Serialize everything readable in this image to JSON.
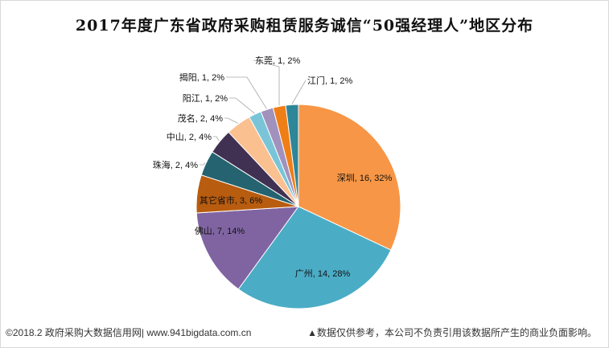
{
  "chart_data": {
    "type": "pie",
    "title": "2017年度广东省政府采购租赁服务诚信“50强经理人”地区分布",
    "slices": [
      {
        "name": "深圳",
        "value": 16,
        "percent": "32%",
        "color": "#f79646"
      },
      {
        "name": "广州",
        "value": 14,
        "percent": "28%",
        "color": "#4bacc6"
      },
      {
        "name": "佛山",
        "value": 7,
        "percent": "14%",
        "color": "#8064a2"
      },
      {
        "name": "其它省市",
        "value": 3,
        "percent": "6%",
        "color": "#b85c0f"
      },
      {
        "name": "珠海",
        "value": 2,
        "percent": "4%",
        "color": "#24636f"
      },
      {
        "name": "中山",
        "value": 2,
        "percent": "4%",
        "color": "#403152"
      },
      {
        "name": "茂名",
        "value": 2,
        "percent": "4%",
        "color": "#fac090"
      },
      {
        "name": "阳江",
        "value": 1,
        "percent": "2%",
        "color": "#7ac4d8"
      },
      {
        "name": "揭阳",
        "value": 1,
        "percent": "2%",
        "color": "#a192bd"
      },
      {
        "name": "东莞",
        "value": 1,
        "percent": "2%",
        "color": "#f07e17"
      },
      {
        "name": "江门",
        "value": 1,
        "percent": "2%",
        "color": "#2e8699"
      }
    ]
  },
  "footer": {
    "left": "©2018.2 政府采购大数据信用网| www.941bigdata.com.cn",
    "right": "▲数据仅供参考，本公司不负责引用该数据所产生的商业负面影响。"
  }
}
